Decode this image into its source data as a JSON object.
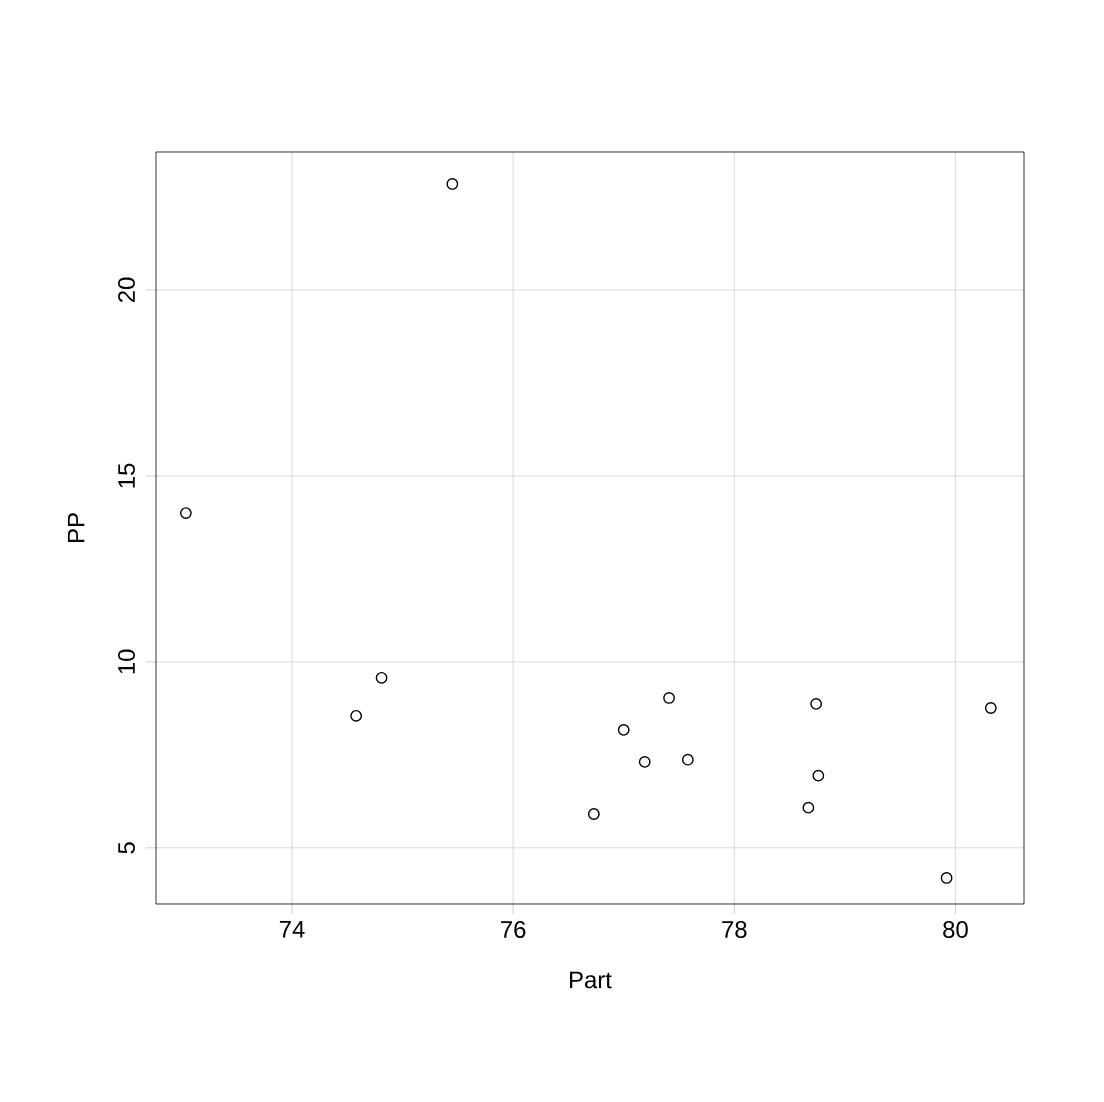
{
  "chart_data": {
    "type": "scatter",
    "xlabel": "Part",
    "ylabel": "PP",
    "x": [
      73.04,
      75.45,
      74.58,
      74.81,
      76.73,
      77.0,
      77.19,
      77.41,
      77.58,
      78.74,
      78.67,
      78.76,
      79.92,
      80.32
    ],
    "values": [
      14.0,
      22.85,
      8.55,
      9.57,
      5.91,
      8.17,
      7.31,
      9.03,
      7.37,
      8.87,
      6.08,
      6.94,
      4.19,
      8.76
    ],
    "color": "#000000",
    "marker": "circle",
    "grid": true,
    "xlim": [
      72.77,
      80.62
    ],
    "ylim": [
      3.49,
      23.71
    ],
    "xticks": [
      74,
      76,
      78,
      80
    ],
    "yticks": [
      5,
      10,
      15,
      20
    ]
  }
}
